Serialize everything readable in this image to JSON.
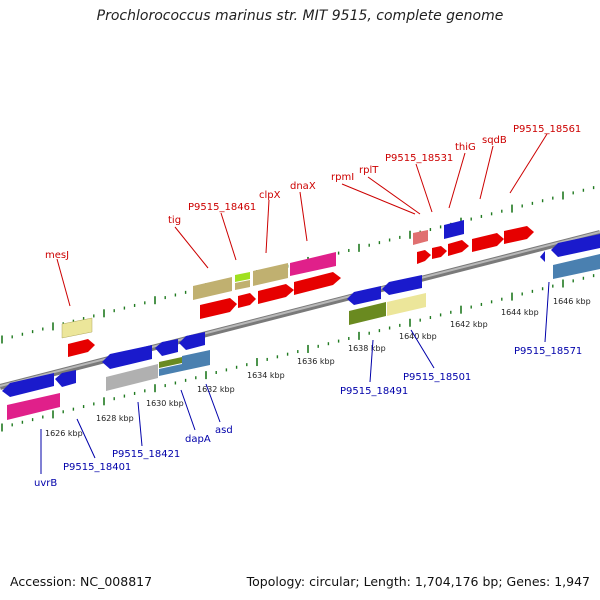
{
  "title": "Prochlorococcus marinus str. MIT 9515, complete genome",
  "footer": {
    "accession": "Accession: NC_008817",
    "topology": "Topology: circular; Length: 1,704,176 bp; Genes: 1,947"
  },
  "colors": {
    "red": "#e60000",
    "blue": "#1a1acc",
    "pink": "#e0208a",
    "khaki": "#c0b070",
    "lightyellow": "#ece69a",
    "steelblue": "#4a80b0",
    "silver": "#b0b0b0",
    "olive": "#6a8a20",
    "lime": "#a0e020",
    "salmon": "#e07070",
    "axis": "#8a8a8a",
    "tick": "#207a20"
  },
  "scale_ticks": [
    "1626 kbp",
    "1628 kbp",
    "1630 kbp",
    "1632 kbp",
    "1634 kbp",
    "1636 kbp",
    "1638 kbp",
    "1640 kbp",
    "1642 kbp",
    "1644 kbp",
    "1646 kbp"
  ],
  "top_labels": [
    "mesJ",
    "tig",
    "P9515_18461",
    "clpX",
    "dnaX",
    "rpmI",
    "rplT",
    "P9515_18531",
    "thiG",
    "sqdB",
    "P9515_18561"
  ],
  "bottom_labels": [
    "uvrB",
    "P9515_18401",
    "P9515_18421",
    "dapA",
    "asd",
    "P9515_18491",
    "P9515_18501",
    "P9515_18571"
  ]
}
